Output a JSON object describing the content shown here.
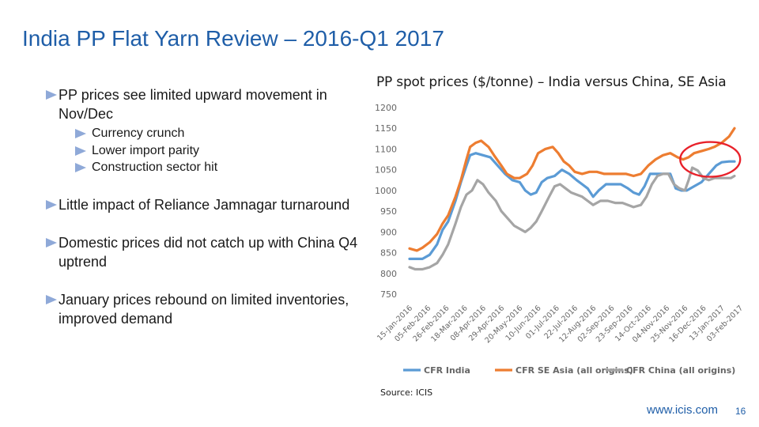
{
  "slide": {
    "title": "India PP Flat Yarn Review – 2016-Q1 2017",
    "bullets": [
      {
        "text": "PP prices see limited upward movement in Nov/Dec",
        "sub": [
          "Currency crunch",
          "Lower import parity",
          "Construction sector hit"
        ]
      },
      {
        "text": "Little impact of Reliance Jamnagar turnaround",
        "sub": []
      },
      {
        "text": "Domestic prices did not catch up with China Q4 uptrend",
        "sub": []
      },
      {
        "text": "January prices rebound on limited inventories, improved demand",
        "sub": []
      }
    ],
    "source": "Source: ICIS",
    "footer_url": "www.icis.com",
    "page_number": "16"
  },
  "chart_data": {
    "type": "line",
    "title": "PP spot prices ($/tonne) – India versus China, SE Asia",
    "ylim": [
      750,
      1200
    ],
    "yticks": [
      750,
      800,
      850,
      900,
      950,
      1000,
      1050,
      1100,
      1150,
      1200
    ],
    "grid": false,
    "legend_position": "bottom",
    "highlight": {
      "shape": "ellipse",
      "color": "#e8212a"
    },
    "categories": [
      "15-Jan-2016",
      "05-Feb-2016",
      "26-Feb-2016",
      "18-Mar-2016",
      "08-Apr-2016",
      "29-Apr-2016",
      "20-May-2016",
      "10-Jun-2016",
      "01-Jul-2016",
      "22-Jul-2016",
      "12-Aug-2016",
      "02-Sep-2016",
      "23-Sep-2016",
      "14-Oct-2016",
      "04-Nov-2016",
      "25-Nov-2016",
      "16-Dec-2016",
      "13-Jan-2017",
      "03-Feb-2017"
    ],
    "series": [
      {
        "name": "CFR India",
        "color": "#5b9bd5",
        "values": [
          [
            0,
            835
          ],
          [
            0.4,
            835
          ],
          [
            0.7,
            835
          ],
          [
            1.1,
            845
          ],
          [
            1.5,
            870
          ],
          [
            1.8,
            905
          ],
          [
            2.1,
            925
          ],
          [
            2.5,
            975
          ],
          [
            2.8,
            1020
          ],
          [
            3.1,
            1060
          ],
          [
            3.3,
            1085
          ],
          [
            3.6,
            1090
          ],
          [
            4,
            1085
          ],
          [
            4.4,
            1080
          ],
          [
            4.8,
            1060
          ],
          [
            5.2,
            1040
          ],
          [
            5.6,
            1025
          ],
          [
            6,
            1020
          ],
          [
            6.3,
            1000
          ],
          [
            6.6,
            990
          ],
          [
            6.9,
            995
          ],
          [
            7.2,
            1020
          ],
          [
            7.5,
            1030
          ],
          [
            7.9,
            1035
          ],
          [
            8.3,
            1050
          ],
          [
            8.7,
            1040
          ],
          [
            9.1,
            1025
          ],
          [
            9.4,
            1015
          ],
          [
            9.7,
            1005
          ],
          [
            10,
            985
          ],
          [
            10.3,
            1000
          ],
          [
            10.7,
            1015
          ],
          [
            11.1,
            1015
          ],
          [
            11.5,
            1015
          ],
          [
            11.9,
            1005
          ],
          [
            12.2,
            995
          ],
          [
            12.5,
            990
          ],
          [
            12.8,
            1010
          ],
          [
            13.1,
            1040
          ],
          [
            13.5,
            1040
          ],
          [
            13.9,
            1040
          ],
          [
            14.2,
            1040
          ],
          [
            14.5,
            1005
          ],
          [
            14.8,
            1000
          ],
          [
            15.1,
            1000
          ],
          [
            15.5,
            1010
          ],
          [
            15.9,
            1020
          ],
          [
            16.3,
            1040
          ],
          [
            16.7,
            1060
          ],
          [
            17,
            1068
          ],
          [
            17.4,
            1070
          ],
          [
            17.7,
            1070
          ]
        ]
      },
      {
        "name": "CFR SE Asia (all origins)",
        "color": "#ed7d31",
        "values": [
          [
            0,
            860
          ],
          [
            0.4,
            855
          ],
          [
            0.7,
            862
          ],
          [
            1.1,
            875
          ],
          [
            1.5,
            895
          ],
          [
            1.8,
            920
          ],
          [
            2.1,
            940
          ],
          [
            2.5,
            985
          ],
          [
            2.8,
            1025
          ],
          [
            3.1,
            1075
          ],
          [
            3.3,
            1105
          ],
          [
            3.6,
            1115
          ],
          [
            3.9,
            1120
          ],
          [
            4.3,
            1105
          ],
          [
            4.6,
            1085
          ],
          [
            5,
            1060
          ],
          [
            5.3,
            1040
          ],
          [
            5.7,
            1030
          ],
          [
            6,
            1030
          ],
          [
            6.4,
            1040
          ],
          [
            6.7,
            1060
          ],
          [
            7,
            1090
          ],
          [
            7.4,
            1100
          ],
          [
            7.8,
            1105
          ],
          [
            8.1,
            1090
          ],
          [
            8.4,
            1070
          ],
          [
            8.7,
            1060
          ],
          [
            9,
            1045
          ],
          [
            9.4,
            1040
          ],
          [
            9.8,
            1045
          ],
          [
            10.2,
            1045
          ],
          [
            10.6,
            1040
          ],
          [
            11,
            1040
          ],
          [
            11.4,
            1040
          ],
          [
            11.8,
            1040
          ],
          [
            12.2,
            1035
          ],
          [
            12.6,
            1040
          ],
          [
            13,
            1060
          ],
          [
            13.4,
            1075
          ],
          [
            13.8,
            1085
          ],
          [
            14.2,
            1090
          ],
          [
            14.6,
            1080
          ],
          [
            14.9,
            1075
          ],
          [
            15.2,
            1080
          ],
          [
            15.5,
            1090
          ],
          [
            15.9,
            1095
          ],
          [
            16.3,
            1100
          ],
          [
            16.6,
            1105
          ],
          [
            17,
            1115
          ],
          [
            17.4,
            1130
          ],
          [
            17.7,
            1150
          ]
        ]
      },
      {
        "name": "CFR China (all origins)",
        "color": "#a5a5a5",
        "values": [
          [
            0,
            815
          ],
          [
            0.3,
            810
          ],
          [
            0.7,
            810
          ],
          [
            1.1,
            815
          ],
          [
            1.5,
            825
          ],
          [
            1.8,
            845
          ],
          [
            2.1,
            870
          ],
          [
            2.5,
            920
          ],
          [
            2.8,
            960
          ],
          [
            3.1,
            990
          ],
          [
            3.4,
            1000
          ],
          [
            3.7,
            1025
          ],
          [
            4,
            1015
          ],
          [
            4.3,
            995
          ],
          [
            4.7,
            975
          ],
          [
            5,
            950
          ],
          [
            5.4,
            930
          ],
          [
            5.7,
            915
          ],
          [
            6.1,
            905
          ],
          [
            6.3,
            900
          ],
          [
            6.6,
            910
          ],
          [
            6.9,
            925
          ],
          [
            7.2,
            950
          ],
          [
            7.6,
            985
          ],
          [
            7.9,
            1010
          ],
          [
            8.2,
            1015
          ],
          [
            8.5,
            1005
          ],
          [
            8.8,
            995
          ],
          [
            9.1,
            990
          ],
          [
            9.4,
            985
          ],
          [
            9.7,
            975
          ],
          [
            10,
            965
          ],
          [
            10.4,
            975
          ],
          [
            10.8,
            975
          ],
          [
            11.2,
            970
          ],
          [
            11.6,
            970
          ],
          [
            11.9,
            965
          ],
          [
            12.2,
            960
          ],
          [
            12.6,
            965
          ],
          [
            12.9,
            985
          ],
          [
            13.2,
            1015
          ],
          [
            13.5,
            1035
          ],
          [
            13.8,
            1040
          ],
          [
            14.1,
            1040
          ],
          [
            14.4,
            1015
          ],
          [
            14.7,
            1005
          ],
          [
            15,
            1000
          ],
          [
            15.2,
            1025
          ],
          [
            15.4,
            1055
          ],
          [
            15.7,
            1048
          ],
          [
            16,
            1030
          ],
          [
            16.3,
            1025
          ],
          [
            16.6,
            1030
          ],
          [
            16.9,
            1030
          ],
          [
            17.2,
            1030
          ],
          [
            17.5,
            1030
          ],
          [
            17.7,
            1035
          ]
        ]
      }
    ]
  }
}
